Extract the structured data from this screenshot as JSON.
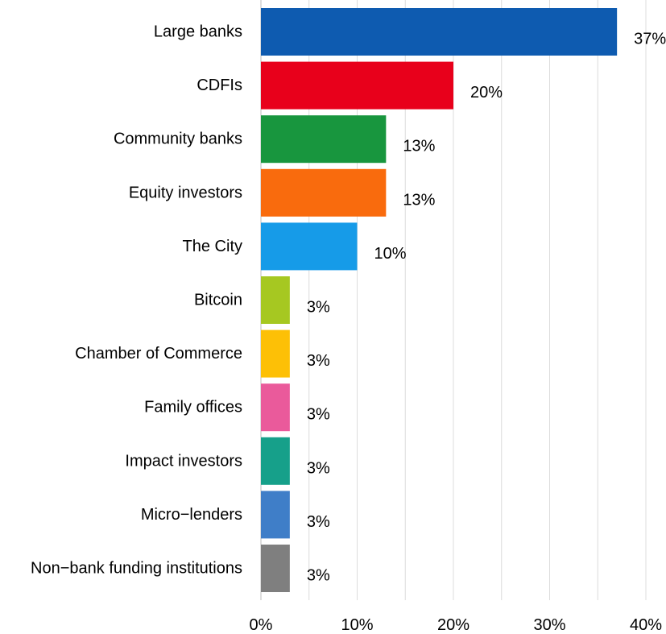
{
  "chart_data": {
    "type": "bar",
    "orientation": "horizontal",
    "categories": [
      "Large banks",
      "CDFIs",
      "Community banks",
      "Equity investors",
      "The City",
      "Bitcoin",
      "Chamber of Commerce",
      "Family offices",
      "Impact investors",
      "Micro−lenders",
      "Non−bank funding institutions"
    ],
    "values": [
      37,
      20,
      13,
      13,
      10,
      3,
      3,
      3,
      3,
      3,
      3
    ],
    "data_labels": [
      "37%",
      "20%",
      "13%",
      "13%",
      "10%",
      "3%",
      "3%",
      "3%",
      "3%",
      "3%",
      "3%"
    ],
    "colors": [
      "#0e5bb0",
      "#e8001b",
      "#18963e",
      "#f96b0d",
      "#169be8",
      "#a6c821",
      "#fdc006",
      "#ea5a9b",
      "#16a08a",
      "#3f7ec8",
      "#7f7f7f"
    ],
    "xlim": [
      0,
      40
    ],
    "x_ticks": [
      0,
      10,
      20,
      30,
      40
    ],
    "x_tick_labels": [
      "0%",
      "10%",
      "20%",
      "30%",
      "40%"
    ],
    "grid": "vertical",
    "title": "",
    "xlabel": "",
    "ylabel": ""
  }
}
